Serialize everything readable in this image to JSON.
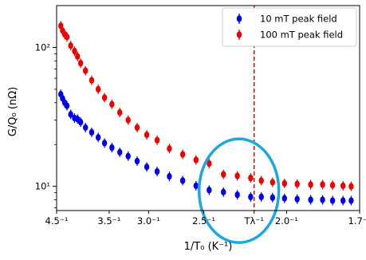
{
  "chart_data": {
    "type": "scatter",
    "xlabel": "1/T₀ (K⁻¹)",
    "ylabel": "G/Q₀ (nΩ)",
    "x_scale": "reciprocal",
    "y_scale": "log",
    "xlim": [
      4.5,
      1.7
    ],
    "ylim": [
      6.7,
      200
    ],
    "x_ticks": [
      {
        "value": 4.5,
        "label": "4.5⁻¹"
      },
      {
        "value": 3.5,
        "label": "3.5⁻¹"
      },
      {
        "value": 3.0,
        "label": "3.0⁻¹"
      },
      {
        "value": 2.5,
        "label": "2.5⁻¹"
      },
      {
        "value": 2.17,
        "label": "Tλ⁻¹"
      },
      {
        "value": 2.0,
        "label": "2.0⁻¹"
      },
      {
        "value": 1.7,
        "label": "1.7⁻¹"
      }
    ],
    "y_ticks": [
      {
        "value": 10,
        "label": "10¹"
      },
      {
        "value": 100,
        "label": "10²"
      }
    ],
    "grid": false,
    "legend_position": "top-right",
    "series": [
      {
        "name": "10 mT peak field",
        "color": "#0000ee",
        "x": [
          4.4,
          4.36,
          4.31,
          4.26,
          4.18,
          4.1,
          4.04,
          3.98,
          3.89,
          3.78,
          3.67,
          3.57,
          3.46,
          3.35,
          3.24,
          3.13,
          3.02,
          2.91,
          2.79,
          2.67,
          2.56,
          2.46,
          2.36,
          2.27,
          2.19,
          2.13,
          2.07,
          2.01,
          1.95,
          1.89,
          1.84,
          1.8,
          1.76,
          1.73
        ],
        "y": [
          46,
          43,
          40,
          38,
          33,
          31,
          30.5,
          29,
          26.5,
          24.5,
          22.5,
          20.5,
          19,
          17.6,
          16.5,
          15.2,
          13.8,
          12.8,
          11.8,
          11.0,
          10.1,
          9.4,
          9.1,
          8.7,
          8.4,
          8.4,
          8.3,
          8.2,
          8.1,
          8.0,
          8.0,
          7.9,
          7.9,
          7.9
        ]
      },
      {
        "name": "100 mT peak field",
        "color": "#ee0000",
        "x": [
          4.4,
          4.36,
          4.31,
          4.26,
          4.18,
          4.1,
          4.04,
          3.98,
          3.89,
          3.78,
          3.67,
          3.57,
          3.46,
          3.35,
          3.24,
          3.13,
          3.02,
          2.91,
          2.79,
          2.67,
          2.56,
          2.46,
          2.36,
          2.27,
          2.19,
          2.13,
          2.07,
          2.01,
          1.95,
          1.89,
          1.84,
          1.8,
          1.76,
          1.73
        ],
        "y": [
          143,
          132,
          124,
          119,
          103,
          94,
          86,
          77,
          68,
          58,
          50,
          43.5,
          39,
          34,
          30,
          26.5,
          23.5,
          21.5,
          18.7,
          17.0,
          15.5,
          14.6,
          12.2,
          11.9,
          11.5,
          11.0,
          10.7,
          10.5,
          10.4,
          10.3,
          10.3,
          10.2,
          10.1,
          10.0
        ]
      }
    ],
    "annotations": [
      {
        "type": "vline",
        "x": 2.17,
        "color": "#cc0000",
        "style": "dashed"
      },
      {
        "type": "ellipse",
        "color": "#19a8e0",
        "center_x": 2.26,
        "center_y": 9.3
      }
    ]
  }
}
